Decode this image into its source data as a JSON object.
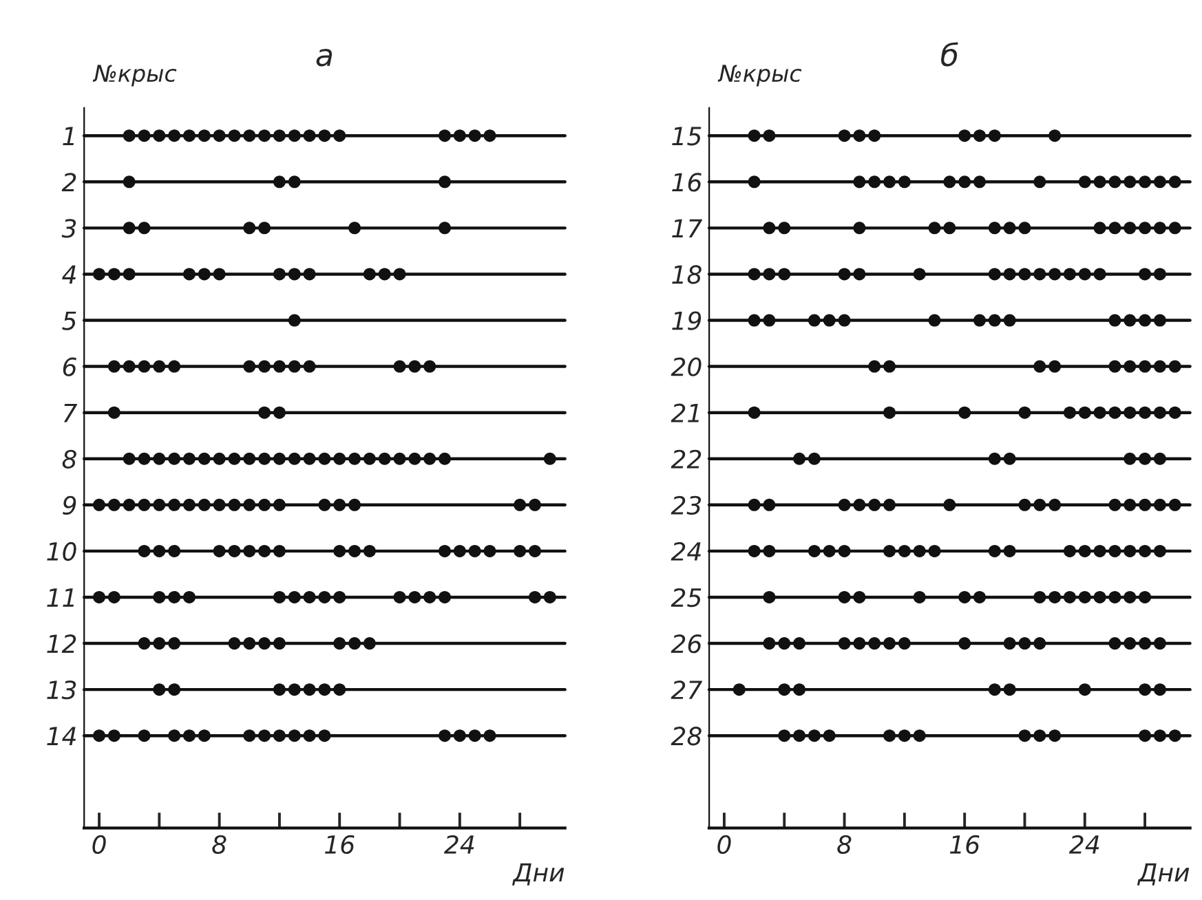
{
  "chart_data": [
    {
      "type": "scatter",
      "title": "а",
      "ylabel": "№крыс",
      "xlabel": "Дни",
      "color": "#111111",
      "marker": "circle",
      "grid": false,
      "xlim": [
        -1,
        31
      ],
      "xticks": [
        0,
        {
          "value": 4,
          "label": null
        },
        8,
        {
          "value": 12,
          "label": null
        },
        16,
        {
          "value": 20,
          "label": null
        },
        24,
        {
          "value": 28,
          "label": null
        }
      ],
      "yticks": [
        1,
        2,
        3,
        4,
        5,
        6,
        7,
        8,
        9,
        10,
        11,
        12,
        13,
        14
      ],
      "ylim": [
        16,
        0.4
      ],
      "ref_lines": [
        {
          "axis": "y",
          "value": 1
        },
        {
          "axis": "y",
          "value": 2
        },
        {
          "axis": "y",
          "value": 3
        },
        {
          "axis": "y",
          "value": 4
        },
        {
          "axis": "y",
          "value": 5
        },
        {
          "axis": "y",
          "value": 6
        },
        {
          "axis": "y",
          "value": 7
        },
        {
          "axis": "y",
          "value": 8
        },
        {
          "axis": "y",
          "value": 9
        },
        {
          "axis": "y",
          "value": 10
        },
        {
          "axis": "y",
          "value": 11
        },
        {
          "axis": "y",
          "value": 12
        },
        {
          "axis": "y",
          "value": 13
        },
        {
          "axis": "y",
          "value": 14
        }
      ],
      "series": [
        {
          "x": [
            2,
            3,
            4,
            5,
            6,
            7,
            8,
            9,
            10,
            11,
            12,
            13,
            14,
            15,
            16,
            23,
            24,
            25,
            26
          ],
          "values": [
            1,
            1,
            1,
            1,
            1,
            1,
            1,
            1,
            1,
            1,
            1,
            1,
            1,
            1,
            1,
            1,
            1,
            1,
            1
          ]
        },
        {
          "x": [
            2,
            12,
            13,
            23
          ],
          "values": [
            2,
            2,
            2,
            2
          ]
        },
        {
          "x": [
            2,
            3,
            10,
            11,
            17,
            23
          ],
          "values": [
            3,
            3,
            3,
            3,
            3,
            3
          ]
        },
        {
          "x": [
            0,
            1,
            2,
            6,
            7,
            8,
            12,
            13,
            14,
            18,
            19,
            20
          ],
          "values": [
            4,
            4,
            4,
            4,
            4,
            4,
            4,
            4,
            4,
            4,
            4,
            4
          ]
        },
        {
          "x": [
            13
          ],
          "values": [
            5
          ]
        },
        {
          "x": [
            1,
            2,
            3,
            4,
            5,
            10,
            11,
            12,
            13,
            14,
            20,
            21,
            22
          ],
          "values": [
            6,
            6,
            6,
            6,
            6,
            6,
            6,
            6,
            6,
            6,
            6,
            6,
            6
          ]
        },
        {
          "x": [
            1,
            11,
            12
          ],
          "values": [
            7,
            7,
            7
          ]
        },
        {
          "x": [
            2,
            3,
            4,
            5,
            6,
            7,
            8,
            9,
            10,
            11,
            12,
            13,
            14,
            15,
            16,
            17,
            18,
            19,
            20,
            21,
            22,
            23,
            30
          ],
          "values": [
            8,
            8,
            8,
            8,
            8,
            8,
            8,
            8,
            8,
            8,
            8,
            8,
            8,
            8,
            8,
            8,
            8,
            8,
            8,
            8,
            8,
            8,
            8
          ]
        },
        {
          "x": [
            0,
            1,
            2,
            3,
            4,
            5,
            6,
            7,
            8,
            9,
            10,
            11,
            12,
            15,
            16,
            17,
            28,
            29
          ],
          "values": [
            9,
            9,
            9,
            9,
            9,
            9,
            9,
            9,
            9,
            9,
            9,
            9,
            9,
            9,
            9,
            9,
            9,
            9
          ]
        },
        {
          "x": [
            3,
            4,
            5,
            8,
            9,
            10,
            11,
            12,
            16,
            17,
            18,
            23,
            24,
            25,
            26,
            28,
            29
          ],
          "values": [
            10,
            10,
            10,
            10,
            10,
            10,
            10,
            10,
            10,
            10,
            10,
            10,
            10,
            10,
            10,
            10,
            10
          ]
        },
        {
          "x": [
            0,
            1,
            4,
            5,
            6,
            12,
            13,
            14,
            15,
            16,
            20,
            21,
            22,
            23,
            29,
            30
          ],
          "values": [
            11,
            11,
            11,
            11,
            11,
            11,
            11,
            11,
            11,
            11,
            11,
            11,
            11,
            11,
            11,
            11
          ]
        },
        {
          "x": [
            3,
            4,
            5,
            9,
            10,
            11,
            12,
            16,
            17,
            18
          ],
          "values": [
            12,
            12,
            12,
            12,
            12,
            12,
            12,
            12,
            12,
            12
          ]
        },
        {
          "x": [
            4,
            5,
            12,
            13,
            14,
            15,
            16
          ],
          "values": [
            13,
            13,
            13,
            13,
            13,
            13,
            13
          ]
        },
        {
          "x": [
            0,
            1,
            3,
            5,
            6,
            7,
            10,
            11,
            12,
            13,
            14,
            15,
            23,
            24,
            25,
            26
          ],
          "values": [
            14,
            14,
            14,
            14,
            14,
            14,
            14,
            14,
            14,
            14,
            14,
            14,
            14,
            14,
            14,
            14
          ]
        }
      ]
    },
    {
      "type": "scatter",
      "title": "б",
      "ylabel": "№крыс",
      "xlabel": "Дни",
      "color": "#111111",
      "marker": "circle",
      "grid": false,
      "xlim": [
        -1,
        31
      ],
      "xticks": [
        0,
        {
          "value": 4,
          "label": null
        },
        8,
        {
          "value": 12,
          "label": null
        },
        16,
        {
          "value": 20,
          "label": null
        },
        24,
        {
          "value": 28,
          "label": null
        }
      ],
      "yticks": [
        15,
        16,
        17,
        18,
        19,
        20,
        21,
        22,
        23,
        24,
        25,
        26,
        27,
        28
      ],
      "ylim": [
        30,
        14.4
      ],
      "ref_lines": [
        {
          "axis": "y",
          "value": 15
        },
        {
          "axis": "y",
          "value": 16
        },
        {
          "axis": "y",
          "value": 17
        },
        {
          "axis": "y",
          "value": 18
        },
        {
          "axis": "y",
          "value": 19
        },
        {
          "axis": "y",
          "value": 20
        },
        {
          "axis": "y",
          "value": 21
        },
        {
          "axis": "y",
          "value": 22
        },
        {
          "axis": "y",
          "value": 23
        },
        {
          "axis": "y",
          "value": 24
        },
        {
          "axis": "y",
          "value": 25
        },
        {
          "axis": "y",
          "value": 26
        },
        {
          "axis": "y",
          "value": 27
        },
        {
          "axis": "y",
          "value": 28
        }
      ],
      "series": [
        {
          "x": [
            2,
            3,
            8,
            9,
            10,
            16,
            17,
            18,
            22
          ],
          "values": [
            15,
            15,
            15,
            15,
            15,
            15,
            15,
            15,
            15
          ]
        },
        {
          "x": [
            2,
            9,
            10,
            11,
            12,
            15,
            16,
            17,
            21,
            24,
            25,
            26,
            27,
            28,
            29,
            30
          ],
          "values": [
            16,
            16,
            16,
            16,
            16,
            16,
            16,
            16,
            16,
            16,
            16,
            16,
            16,
            16,
            16,
            16
          ]
        },
        {
          "x": [
            3,
            4,
            9,
            14,
            15,
            18,
            19,
            20,
            25,
            26,
            27,
            28,
            29,
            30
          ],
          "values": [
            17,
            17,
            17,
            17,
            17,
            17,
            17,
            17,
            17,
            17,
            17,
            17,
            17,
            17
          ]
        },
        {
          "x": [
            2,
            3,
            4,
            8,
            9,
            13,
            18,
            19,
            20,
            21,
            22,
            23,
            24,
            25,
            28,
            29
          ],
          "values": [
            18,
            18,
            18,
            18,
            18,
            18,
            18,
            18,
            18,
            18,
            18,
            18,
            18,
            18,
            18,
            18
          ]
        },
        {
          "x": [
            2,
            3,
            6,
            7,
            8,
            14,
            17,
            18,
            19,
            26,
            27,
            28,
            29
          ],
          "values": [
            19,
            19,
            19,
            19,
            19,
            19,
            19,
            19,
            19,
            19,
            19,
            19,
            19
          ]
        },
        {
          "x": [
            10,
            11,
            21,
            22,
            26,
            27,
            28,
            29,
            30
          ],
          "values": [
            20,
            20,
            20,
            20,
            20,
            20,
            20,
            20,
            20
          ]
        },
        {
          "x": [
            2,
            11,
            16,
            20,
            23,
            24,
            25,
            26,
            27,
            28,
            29,
            30
          ],
          "values": [
            21,
            21,
            21,
            21,
            21,
            21,
            21,
            21,
            21,
            21,
            21,
            21
          ]
        },
        {
          "x": [
            5,
            6,
            18,
            19,
            27,
            28,
            29
          ],
          "values": [
            22,
            22,
            22,
            22,
            22,
            22,
            22
          ]
        },
        {
          "x": [
            2,
            3,
            8,
            9,
            10,
            11,
            15,
            20,
            21,
            22,
            26,
            27,
            28,
            29,
            30
          ],
          "values": [
            23,
            23,
            23,
            23,
            23,
            23,
            23,
            23,
            23,
            23,
            23,
            23,
            23,
            23,
            23
          ]
        },
        {
          "x": [
            2,
            3,
            6,
            7,
            8,
            11,
            12,
            13,
            14,
            18,
            19,
            23,
            24,
            25,
            26,
            27,
            28,
            29
          ],
          "values": [
            24,
            24,
            24,
            24,
            24,
            24,
            24,
            24,
            24,
            24,
            24,
            24,
            24,
            24,
            24,
            24,
            24,
            24
          ]
        },
        {
          "x": [
            3,
            8,
            9,
            13,
            16,
            17,
            21,
            22,
            23,
            24,
            25,
            26,
            27,
            28
          ],
          "values": [
            25,
            25,
            25,
            25,
            25,
            25,
            25,
            25,
            25,
            25,
            25,
            25,
            25,
            25
          ]
        },
        {
          "x": [
            3,
            4,
            5,
            8,
            9,
            10,
            11,
            12,
            16,
            19,
            20,
            21,
            26,
            27,
            28,
            29
          ],
          "values": [
            26,
            26,
            26,
            26,
            26,
            26,
            26,
            26,
            26,
            26,
            26,
            26,
            26,
            26,
            26,
            26
          ]
        },
        {
          "x": [
            1,
            4,
            5,
            18,
            19,
            24,
            28,
            29
          ],
          "values": [
            27,
            27,
            27,
            27,
            27,
            27,
            27,
            27
          ]
        },
        {
          "x": [
            4,
            5,
            6,
            7,
            11,
            12,
            13,
            20,
            21,
            22,
            28,
            29,
            30
          ],
          "values": [
            28,
            28,
            28,
            28,
            28,
            28,
            28,
            28,
            28,
            28,
            28,
            28,
            28
          ]
        }
      ]
    }
  ]
}
